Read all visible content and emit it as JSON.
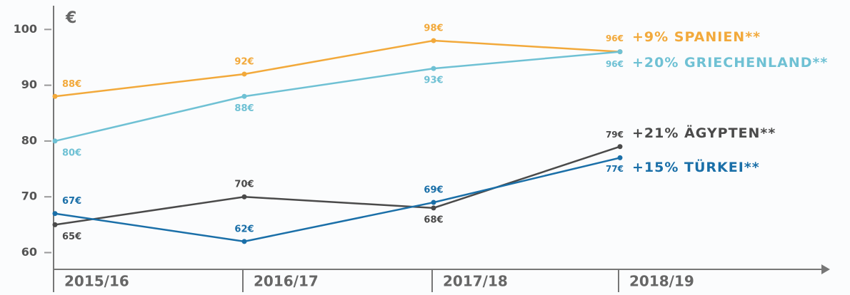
{
  "chart_data": {
    "type": "line",
    "ylabel": "€",
    "categories": [
      "2015/16",
      "2016/17",
      "2017/18",
      "2018/19"
    ],
    "ylim": [
      57,
      104
    ],
    "yticks": [
      60,
      70,
      80,
      90,
      100
    ],
    "series": [
      {
        "name": "+9% SPANIEN**",
        "color": "#f2a93b",
        "values": [
          88,
          92,
          98,
          96
        ],
        "value_labels": [
          "88€",
          "92€",
          "98€",
          "96€"
        ]
      },
      {
        "name": "+20% GRIECHENLAND**",
        "color": "#6fc1d4",
        "values": [
          80,
          88,
          93,
          96
        ],
        "value_labels": [
          "80€",
          "88€",
          "93€",
          "96€"
        ]
      },
      {
        "name": "+21% ÄGYPTEN**",
        "color": "#4a4a4a",
        "values": [
          65,
          70,
          68,
          79
        ],
        "value_labels": [
          "65€",
          "70€",
          "68€",
          "79€"
        ]
      },
      {
        "name": "+15% TÜRKEI**",
        "color": "#1a6fa8",
        "values": [
          67,
          62,
          69,
          77
        ],
        "value_labels": [
          "67€",
          "62€",
          "69€",
          "77€"
        ]
      }
    ]
  }
}
